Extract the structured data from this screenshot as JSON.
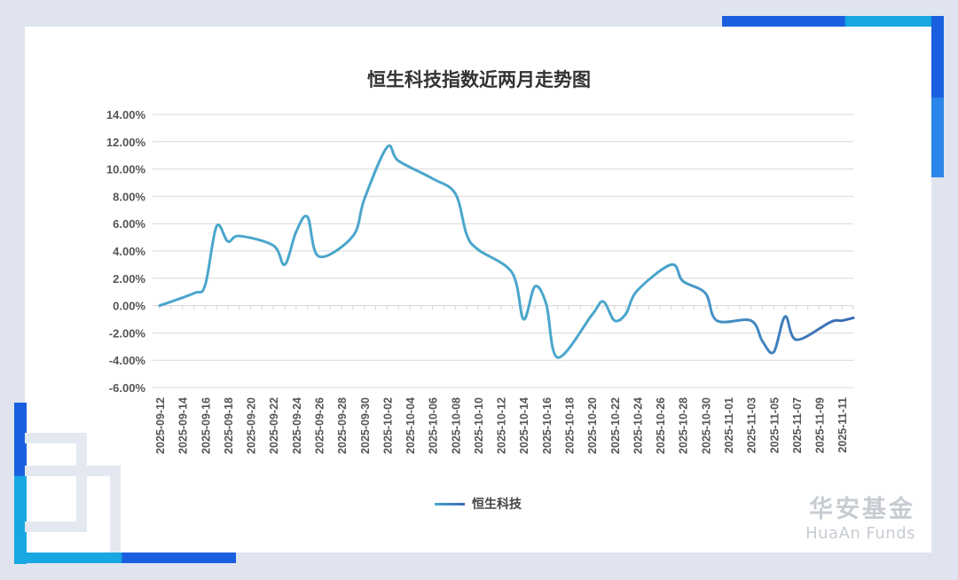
{
  "colors": {
    "line_start": "#4aa6cc",
    "line_end": "#3b6bb5",
    "accent_blue": "#1a5fe0",
    "accent_cyan": "#17a8e3"
  },
  "chart_data": {
    "type": "line",
    "title": "恒生科技指数近两月走势图",
    "xlabel": "",
    "ylabel": "",
    "ylim": [
      -6,
      14
    ],
    "yticks": [
      "14.00%",
      "12.00%",
      "10.00%",
      "8.00%",
      "6.00%",
      "4.00%",
      "2.00%",
      "0.00%",
      "-2.00%",
      "-4.00%",
      "-6.00%"
    ],
    "x": [
      "2025-09-12",
      "2025-09-15",
      "2025-09-16",
      "2025-09-17",
      "2025-09-18",
      "2025-09-19",
      "2025-09-22",
      "2025-09-23",
      "2025-09-24",
      "2025-09-25",
      "2025-09-26",
      "2025-09-29",
      "2025-09-30",
      "2025-10-02",
      "2025-10-03",
      "2025-10-06",
      "2025-10-08",
      "2025-10-09",
      "2025-10-10",
      "2025-10-13",
      "2025-10-14",
      "2025-10-15",
      "2025-10-16",
      "2025-10-17",
      "2025-10-20",
      "2025-10-21",
      "2025-10-22",
      "2025-10-23",
      "2025-10-24",
      "2025-10-27",
      "2025-10-28",
      "2025-10-30",
      "2025-10-31",
      "2025-11-03",
      "2025-11-04",
      "2025-11-05",
      "2025-11-06",
      "2025-11-07",
      "2025-11-10",
      "2025-11-11",
      "2025-11-12"
    ],
    "series": [
      {
        "name": "恒生科技",
        "values": [
          0.0,
          0.9,
          1.5,
          5.8,
          4.7,
          5.1,
          4.4,
          3.0,
          5.4,
          6.5,
          3.6,
          5.1,
          7.8,
          11.6,
          10.6,
          9.3,
          8.2,
          5.2,
          4.1,
          2.4,
          -1.0,
          1.4,
          0.1,
          -3.8,
          -0.7,
          0.3,
          -1.1,
          -0.6,
          1.1,
          3.0,
          1.8,
          0.9,
          -1.1,
          -1.1,
          -2.6,
          -3.4,
          -0.8,
          -2.5,
          -1.2,
          -1.1,
          -0.9
        ]
      }
    ],
    "xtick_labels": [
      "2025-09-12",
      "2025-09-14",
      "2025-09-16",
      "2025-09-18",
      "2025-09-20",
      "2025-09-22",
      "2025-09-24",
      "2025-09-26",
      "2025-09-28",
      "2025-09-30",
      "2025-10-02",
      "2025-10-04",
      "2025-10-06",
      "2025-10-08",
      "2025-10-10",
      "2025-10-12",
      "2025-10-14",
      "2025-10-16",
      "2025-10-18",
      "2025-10-20",
      "2025-10-22",
      "2025-10-24",
      "2025-10-26",
      "2025-10-28",
      "2025-10-30",
      "2025-11-01",
      "2025-11-03",
      "2025-11-05",
      "2025-11-07",
      "2025-11-09",
      "2025-11-11"
    ],
    "grid": true,
    "legend_position": "bottom"
  },
  "watermark": {
    "cn": "华安基金",
    "en": "HuaAn Funds"
  }
}
